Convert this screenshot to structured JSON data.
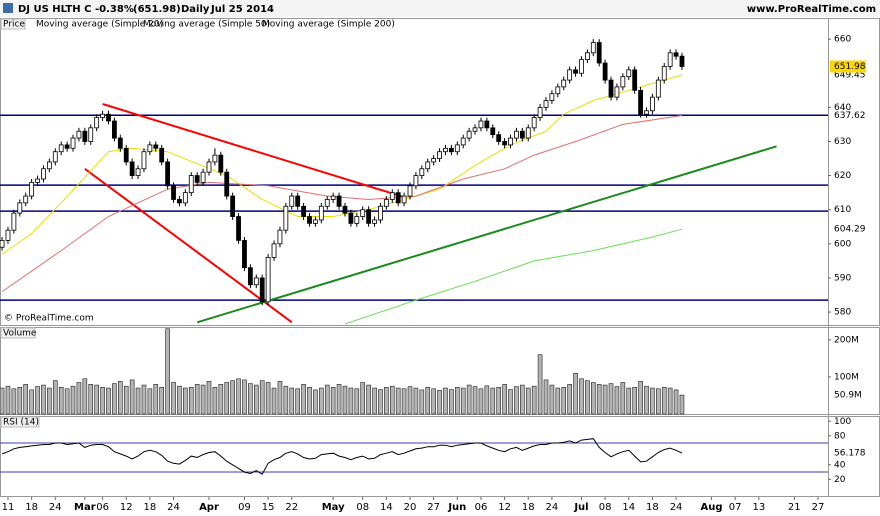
{
  "header": {
    "symbol": "DJ US HLTH C",
    "change": "-0.38%",
    "price": "(651.98)",
    "period": "Daily",
    "date": "Jul 25 2014",
    "site": "www.ProRealTime.com",
    "copyright": "© ProRealTime.com"
  },
  "chart_data": [
    {
      "type": "candlestick",
      "legend": "Price",
      "up_color": "#ffffff",
      "down_color": "#000000",
      "xlim": [
        -0.35,
        139.7
      ],
      "ylim": [
        576.2,
        666.2
      ],
      "yticks": [
        580,
        590,
        600,
        610,
        620,
        630,
        640,
        660
      ],
      "open": [
        599,
        601,
        604,
        609,
        612,
        614,
        618,
        619,
        622,
        624,
        627,
        629,
        628,
        631,
        633,
        630,
        634,
        637,
        638,
        636,
        631,
        628,
        624,
        620,
        622,
        627,
        629,
        628,
        624,
        617,
        613,
        612,
        615,
        620,
        618,
        621,
        624,
        626,
        621,
        614,
        608,
        601,
        593,
        588,
        590,
        583,
        596,
        600,
        604,
        611,
        614,
        611,
        608,
        606,
        607,
        611,
        613,
        614,
        611,
        609,
        606,
        608,
        610,
        606,
        607,
        611,
        613,
        615,
        612,
        614,
        617,
        620,
        622,
        624,
        625,
        627,
        628,
        627,
        629,
        631,
        633,
        634,
        636,
        634,
        632,
        630,
        629,
        631,
        633,
        631,
        634,
        637,
        640,
        642,
        644,
        646,
        648,
        651,
        650,
        654,
        656,
        659,
        653,
        648,
        643,
        646,
        649,
        651,
        645,
        638,
        639,
        643,
        648,
        652,
        656,
        655
      ],
      "high": [
        602,
        605,
        610,
        613,
        615,
        619,
        620,
        623,
        625,
        628,
        630,
        630,
        632,
        634,
        634,
        635,
        638,
        639,
        639,
        637,
        632,
        629,
        625,
        623,
        628,
        630,
        630,
        629,
        625,
        618,
        614,
        616,
        621,
        621,
        622,
        625,
        628,
        627,
        622,
        615,
        609,
        602,
        594,
        591,
        591,
        597,
        601,
        605,
        612,
        615,
        615,
        612,
        609,
        608,
        612,
        614,
        615,
        615,
        612,
        610,
        609,
        611,
        611,
        608,
        612,
        614,
        616,
        616,
        615,
        618,
        621,
        623,
        625,
        626,
        628,
        629,
        629,
        630,
        632,
        634,
        635,
        637,
        637,
        635,
        633,
        631,
        632,
        634,
        634,
        635,
        638,
        641,
        643,
        645,
        647,
        649,
        652,
        652,
        655,
        657,
        660,
        660,
        654,
        649,
        647,
        650,
        652,
        652,
        646,
        640,
        644,
        649,
        653,
        657,
        657,
        656
      ],
      "low": [
        598,
        600,
        603,
        608,
        611,
        613,
        617,
        618,
        621,
        623,
        626,
        627,
        627,
        630,
        629,
        629,
        633,
        636,
        635,
        630,
        627,
        623,
        619,
        619,
        621,
        626,
        627,
        623,
        616,
        612,
        611,
        611,
        614,
        617,
        617,
        620,
        623,
        620,
        613,
        607,
        600,
        592,
        587,
        587,
        582,
        582,
        595,
        599,
        603,
        610,
        610,
        607,
        605,
        605,
        606,
        610,
        612,
        610,
        608,
        605,
        605,
        607,
        605,
        605,
        606,
        610,
        612,
        611,
        611,
        613,
        616,
        619,
        621,
        623,
        624,
        626,
        626,
        626,
        628,
        630,
        632,
        633,
        633,
        631,
        629,
        628,
        628,
        630,
        630,
        630,
        633,
        636,
        639,
        641,
        643,
        645,
        647,
        649,
        649,
        653,
        655,
        652,
        647,
        642,
        642,
        645,
        648,
        644,
        637,
        637,
        638,
        642,
        647,
        651,
        654,
        651
      ],
      "close": [
        601,
        604,
        609,
        612,
        614,
        618,
        619,
        622,
        624,
        627,
        629,
        628,
        631,
        633,
        630,
        634,
        637,
        638,
        636,
        631,
        628,
        624,
        620,
        622,
        627,
        629,
        628,
        624,
        617,
        613,
        612,
        615,
        620,
        618,
        621,
        624,
        626,
        621,
        614,
        608,
        601,
        593,
        588,
        590,
        583,
        596,
        600,
        604,
        611,
        614,
        611,
        608,
        606,
        607,
        611,
        613,
        614,
        611,
        609,
        606,
        608,
        610,
        606,
        607,
        611,
        613,
        615,
        612,
        614,
        617,
        620,
        622,
        624,
        625,
        627,
        628,
        627,
        629,
        631,
        633,
        634,
        636,
        634,
        632,
        630,
        629,
        631,
        633,
        631,
        634,
        637,
        640,
        642,
        644,
        646,
        648,
        651,
        650,
        654,
        656,
        659,
        653,
        648,
        643,
        646,
        649,
        651,
        645,
        638,
        639,
        643,
        648,
        652,
        656,
        655,
        651.98
      ],
      "overlays": [
        {
          "name": "Moving average (Simple 20)",
          "color": "#e8e000",
          "x": [
            0,
            5,
            10,
            18,
            22,
            28,
            38,
            44,
            50,
            56,
            62,
            68,
            74,
            80,
            86,
            92,
            95,
            100,
            106,
            112,
            115
          ],
          "values": [
            597,
            603,
            612,
            627,
            628,
            627,
            620,
            613,
            608,
            608,
            610,
            613,
            616,
            623,
            629,
            633,
            638,
            642,
            645,
            648,
            649.45
          ]
        },
        {
          "name": "Moving average (Simple 50)",
          "color": "#e07070",
          "x": [
            0,
            10,
            18,
            28,
            35,
            45,
            55,
            62,
            70,
            78,
            85,
            90,
            97,
            105,
            115
          ],
          "values": [
            586,
            598,
            608,
            616,
            618,
            617,
            614,
            613,
            614,
            619,
            622,
            626,
            630,
            635,
            637.62
          ]
        },
        {
          "name": "Moving average (Simple 200)",
          "color": "#66e050",
          "x": [
            58,
            70,
            80,
            90,
            100,
            110,
            115
          ],
          "values": [
            576.5,
            583.5,
            589,
            595,
            598,
            602,
            604.29
          ]
        }
      ],
      "hlines": [
        {
          "value": 637.7,
          "color": "#000080"
        },
        {
          "value": 617.2,
          "color": "#000080"
        },
        {
          "value": 609.6,
          "color": "#000080"
        },
        {
          "value": 583.5,
          "color": "#000080"
        }
      ],
      "trendlines": [
        {
          "color": "#ff0000",
          "x": [
            17,
            68
          ],
          "values": [
            641,
            613.7
          ]
        },
        {
          "color": "#ff0000",
          "x": [
            14,
            49
          ],
          "values": [
            622,
            577
          ]
        },
        {
          "color": "#1a8a1a",
          "x": [
            33,
            131
          ],
          "values": [
            577,
            628.6
          ]
        }
      ]
    },
    {
      "type": "bar",
      "title": "Volume",
      "color": "#b4b4b4",
      "xlim": [
        -0.35,
        139.7
      ],
      "ylim": [
        0,
        232
      ],
      "yticks": [
        {
          "value": 200,
          "label": "200M"
        },
        {
          "value": 100,
          "label": "100M"
        }
      ],
      "last_label": "50.9M",
      "values": [
        70,
        75,
        68,
        72,
        80,
        65,
        74,
        78,
        70,
        90,
        72,
        68,
        75,
        85,
        95,
        80,
        78,
        72,
        70,
        82,
        88,
        75,
        92,
        70,
        78,
        68,
        80,
        72,
        230,
        85,
        75,
        70,
        72,
        80,
        78,
        88,
        72,
        80,
        85,
        90,
        95,
        92,
        82,
        78,
        90,
        85,
        70,
        88,
        75,
        70,
        68,
        80,
        72,
        65,
        70,
        78,
        72,
        80,
        75,
        70,
        68,
        85,
        78,
        70,
        66,
        72,
        75,
        70,
        68,
        74,
        70,
        65,
        72,
        68,
        64,
        70,
        66,
        72,
        70,
        78,
        74,
        68,
        76,
        70,
        72,
        80,
        66,
        74,
        78,
        70,
        75,
        160,
        92,
        78,
        70,
        72,
        80,
        110,
        95,
        90,
        85,
        80,
        78,
        82,
        74,
        85,
        70,
        72,
        88,
        75,
        70,
        68,
        72,
        70,
        65,
        50.9
      ]
    },
    {
      "type": "line",
      "title": "RSI (14)",
      "color": "#000000",
      "xlim": [
        -0.35,
        139.7
      ],
      "ylim": [
        -3,
        104.5
      ],
      "yticks": [
        100,
        80,
        40,
        20
      ],
      "hlines": [
        {
          "value": 70,
          "color": "#4040b0"
        },
        {
          "value": 30,
          "color": "#4040b0"
        }
      ],
      "values": [
        55,
        58,
        62,
        64,
        65,
        66,
        67,
        68,
        68,
        70,
        70,
        68,
        69,
        70,
        64,
        67,
        68,
        68,
        65,
        58,
        55,
        52,
        48,
        52,
        58,
        60,
        58,
        53,
        45,
        42,
        41,
        46,
        52,
        50,
        54,
        57,
        58,
        52,
        45,
        40,
        35,
        30,
        28,
        32,
        27,
        42,
        47,
        50,
        56,
        58,
        55,
        50,
        48,
        49,
        54,
        55,
        56,
        52,
        50,
        47,
        50,
        52,
        48,
        49,
        54,
        56,
        58,
        54,
        56,
        59,
        62,
        63,
        65,
        65,
        67,
        67,
        65,
        67,
        68,
        69,
        70,
        70,
        66,
        63,
        60,
        58,
        62,
        64,
        60,
        63,
        66,
        68,
        68,
        70,
        70,
        71,
        73,
        70,
        74,
        75,
        76,
        64,
        57,
        51,
        55,
        58,
        60,
        52,
        44,
        45,
        51,
        57,
        61,
        63,
        60,
        56.178
      ],
      "xticks": [
        {
          "value": 1,
          "label": "11"
        },
        {
          "value": 5,
          "label": "18"
        },
        {
          "value": 9,
          "label": "24"
        },
        {
          "value": 14,
          "label": "Mar"
        },
        {
          "value": 17,
          "label": "06"
        },
        {
          "value": 21,
          "label": "12"
        },
        {
          "value": 25,
          "label": "18"
        },
        {
          "value": 29,
          "label": "24"
        },
        {
          "value": 35,
          "label": "Apr"
        },
        {
          "value": 41,
          "label": "09"
        },
        {
          "value": 45,
          "label": "15"
        },
        {
          "value": 49,
          "label": "22"
        },
        {
          "value": 56,
          "label": "May"
        },
        {
          "value": 61,
          "label": "08"
        },
        {
          "value": 65,
          "label": "14"
        },
        {
          "value": 69,
          "label": "20"
        },
        {
          "value": 73,
          "label": "27"
        },
        {
          "value": 77,
          "label": "Jun"
        },
        {
          "value": 81,
          "label": "06"
        },
        {
          "value": 85,
          "label": "12"
        },
        {
          "value": 89,
          "label": "18"
        },
        {
          "value": 93,
          "label": "24"
        },
        {
          "value": 98,
          "label": "Jul"
        },
        {
          "value": 102,
          "label": "08"
        },
        {
          "value": 106,
          "label": "14"
        },
        {
          "value": 110,
          "label": "18"
        },
        {
          "value": 114,
          "label": "24"
        },
        {
          "value": 120,
          "label": "Aug"
        },
        {
          "value": 124,
          "label": "07"
        },
        {
          "value": 128,
          "label": "13"
        },
        {
          "value": 134,
          "label": "21"
        },
        {
          "value": 138,
          "label": "27"
        }
      ]
    }
  ]
}
